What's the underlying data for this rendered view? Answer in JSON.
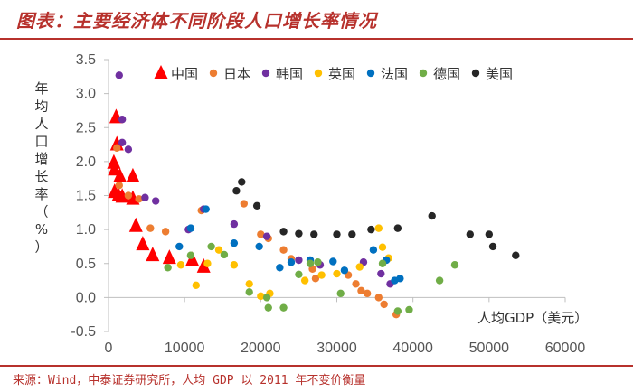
{
  "header": {
    "title": "图表：主要经济体不同阶段人口增长率情况"
  },
  "footer": {
    "source": "来源：Wind，中泰证券研究所，人均 GDP 以 2011 年不变价衡量"
  },
  "chart_data": {
    "type": "scatter",
    "title": "",
    "xlabel": "人均GDP（美元）",
    "ylabel": "年均人口增长率（%）",
    "xlim": [
      0,
      60000
    ],
    "ylim": [
      -0.5,
      3.5
    ],
    "x_ticks": [
      0,
      10000,
      20000,
      30000,
      40000,
      50000,
      60000
    ],
    "y_ticks": [
      -0.5,
      0.0,
      0.5,
      1.0,
      1.5,
      2.0,
      2.5,
      3.0,
      3.5
    ],
    "y_tick_labels": [
      "-0.5",
      "0.0",
      "0.5",
      "1.0",
      "1.5",
      "2.0",
      "2.5",
      "3.0",
      "3.5"
    ],
    "grid": false,
    "legend_position": "top",
    "series": [
      {
        "name": "中国",
        "marker": "triangle",
        "color": "#ff0000",
        "points": [
          [
            1000,
            2.65
          ],
          [
            1100,
            2.25
          ],
          [
            700,
            1.98
          ],
          [
            800,
            1.88
          ],
          [
            1500,
            1.78
          ],
          [
            3200,
            1.78
          ],
          [
            800,
            1.55
          ],
          [
            1300,
            1.5
          ],
          [
            1800,
            1.48
          ],
          [
            3200,
            1.45
          ],
          [
            3600,
            1.05
          ],
          [
            4500,
            0.78
          ],
          [
            5800,
            0.62
          ],
          [
            8000,
            0.58
          ],
          [
            11000,
            0.55
          ],
          [
            12500,
            0.45
          ]
        ]
      },
      {
        "name": "日本",
        "color": "#ed7d31",
        "points": [
          [
            1100,
            2.2
          ],
          [
            1400,
            1.65
          ],
          [
            2600,
            1.5
          ],
          [
            4000,
            1.45
          ],
          [
            5500,
            1.02
          ],
          [
            7500,
            0.97
          ],
          [
            12200,
            1.28
          ],
          [
            17800,
            1.38
          ],
          [
            20000,
            0.93
          ],
          [
            21000,
            0.87
          ],
          [
            23000,
            0.7
          ],
          [
            24000,
            0.57
          ],
          [
            26800,
            0.42
          ],
          [
            27200,
            0.28
          ],
          [
            31500,
            0.33
          ],
          [
            32500,
            0.2
          ],
          [
            33200,
            0.1
          ],
          [
            34000,
            0.06
          ],
          [
            35500,
            0.0
          ],
          [
            36200,
            -0.1
          ],
          [
            37800,
            -0.25
          ]
        ]
      },
      {
        "name": "韩国",
        "color": "#7030a0",
        "points": [
          [
            1400,
            3.27
          ],
          [
            1800,
            2.62
          ],
          [
            1800,
            2.28
          ],
          [
            2600,
            2.18
          ],
          [
            4800,
            1.47
          ],
          [
            6200,
            1.42
          ],
          [
            10500,
            1.0
          ],
          [
            12500,
            1.3
          ],
          [
            16500,
            1.08
          ],
          [
            20800,
            0.9
          ],
          [
            25000,
            0.55
          ],
          [
            27800,
            0.48
          ],
          [
            33500,
            0.52
          ],
          [
            35800,
            0.35
          ],
          [
            37000,
            0.2
          ]
        ]
      },
      {
        "name": "英国",
        "color": "#ffc000",
        "points": [
          [
            9500,
            0.48
          ],
          [
            11500,
            0.18
          ],
          [
            13000,
            0.5
          ],
          [
            14500,
            0.7
          ],
          [
            16500,
            0.48
          ],
          [
            18500,
            0.2
          ],
          [
            20000,
            0.02
          ],
          [
            21200,
            0.06
          ],
          [
            25800,
            0.25
          ],
          [
            28000,
            0.33
          ],
          [
            30000,
            0.35
          ],
          [
            33000,
            0.45
          ],
          [
            36000,
            0.74
          ],
          [
            36800,
            0.58
          ],
          [
            35500,
            1.02
          ]
        ]
      },
      {
        "name": "法国",
        "color": "#0070c0",
        "points": [
          [
            9300,
            0.75
          ],
          [
            10800,
            1.02
          ],
          [
            12800,
            1.3
          ],
          [
            16500,
            0.8
          ],
          [
            19800,
            0.75
          ],
          [
            22500,
            0.44
          ],
          [
            24000,
            0.52
          ],
          [
            26500,
            0.55
          ],
          [
            29500,
            0.53
          ],
          [
            31000,
            0.4
          ],
          [
            34800,
            0.7
          ],
          [
            36500,
            0.55
          ],
          [
            37600,
            0.25
          ],
          [
            38300,
            0.28
          ]
        ]
      },
      {
        "name": "德国",
        "color": "#70ad47",
        "points": [
          [
            7800,
            0.44
          ],
          [
            10800,
            0.62
          ],
          [
            13500,
            0.75
          ],
          [
            15200,
            0.63
          ],
          [
            18500,
            0.08
          ],
          [
            20800,
            0.0
          ],
          [
            21000,
            -0.15
          ],
          [
            23000,
            -0.15
          ],
          [
            25000,
            0.34
          ],
          [
            26500,
            0.5
          ],
          [
            27500,
            0.52
          ],
          [
            30500,
            0.06
          ],
          [
            36000,
            0.5
          ],
          [
            38000,
            -0.2
          ],
          [
            39500,
            -0.18
          ],
          [
            43500,
            0.25
          ],
          [
            45500,
            0.48
          ]
        ]
      },
      {
        "name": "美国",
        "color": "#262626",
        "points": [
          [
            16800,
            1.57
          ],
          [
            17500,
            1.7
          ],
          [
            19500,
            1.35
          ],
          [
            23000,
            0.97
          ],
          [
            25000,
            0.94
          ],
          [
            27000,
            0.93
          ],
          [
            30000,
            0.93
          ],
          [
            32000,
            0.93
          ],
          [
            34500,
            1.0
          ],
          [
            38000,
            1.02
          ],
          [
            42500,
            1.2
          ],
          [
            47500,
            0.93
          ],
          [
            50000,
            0.93
          ],
          [
            50500,
            0.75
          ],
          [
            53500,
            0.62
          ]
        ]
      }
    ]
  }
}
